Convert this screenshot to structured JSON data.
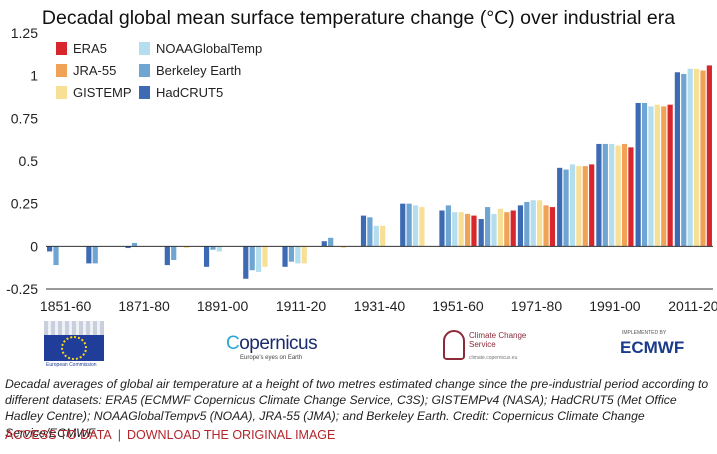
{
  "chart_data": {
    "type": "bar",
    "title": "Decadal global mean surface temperature change (°C) over industrial era",
    "xlabel": "",
    "ylabel": "",
    "ylim": [
      -0.25,
      1.25
    ],
    "yticks": [
      -0.25,
      0,
      0.25,
      0.5,
      0.75,
      1,
      1.25
    ],
    "ytick_labels": [
      "-0.25",
      "0",
      "0.25",
      "0.5",
      "0.75",
      "1",
      "1.25"
    ],
    "categories": [
      "1851-60",
      "1861-70",
      "1871-80",
      "1881-90",
      "1891-00",
      "1901-10",
      "1911-20",
      "1921-30",
      "1931-40",
      "1941-50",
      "1951-60",
      "1961-70",
      "1971-80",
      "1981-90",
      "1991-00",
      "2001-10",
      "2011-20"
    ],
    "xtick_labels": [
      "1851-60",
      "",
      "1871-80",
      "",
      "1891-00",
      "",
      "1911-20",
      "",
      "1931-40",
      "",
      "1951-60",
      "",
      "1971-80",
      "",
      "1991-00",
      "",
      "2011-20"
    ],
    "grid": false,
    "legend_position": "top-left",
    "series": [
      {
        "name": "HadCRUT5",
        "color": "#3d6bb3",
        "values": [
          -0.03,
          -0.1,
          -0.01,
          -0.11,
          -0.12,
          -0.19,
          -0.12,
          0.03,
          0.18,
          0.25,
          0.21,
          0.16,
          0.24,
          0.46,
          0.6,
          0.84,
          1.02
        ]
      },
      {
        "name": "Berkeley Earth",
        "color": "#6fa5d2",
        "values": [
          -0.11,
          -0.1,
          0.02,
          -0.08,
          -0.02,
          -0.14,
          -0.09,
          0.05,
          0.17,
          0.25,
          0.24,
          0.23,
          0.26,
          0.45,
          0.6,
          0.84,
          1.01
        ]
      },
      {
        "name": "NOAAGlobalTemp",
        "color": "#b4dded",
        "values": [
          null,
          null,
          null,
          null,
          -0.03,
          -0.15,
          -0.1,
          null,
          0.12,
          0.24,
          0.2,
          0.19,
          0.27,
          0.48,
          0.6,
          0.82,
          1.04
        ]
      },
      {
        "name": "GISTEMP",
        "color": "#f8df96",
        "values": [
          null,
          null,
          null,
          -0.01,
          null,
          -0.12,
          -0.1,
          -0.01,
          0.12,
          0.23,
          0.2,
          0.22,
          0.27,
          0.47,
          0.59,
          0.83,
          1.04
        ]
      },
      {
        "name": "JRA-55",
        "color": "#f0a256",
        "values": [
          null,
          null,
          null,
          null,
          null,
          null,
          null,
          null,
          null,
          null,
          0.19,
          0.2,
          0.24,
          0.47,
          0.6,
          0.82,
          1.03
        ]
      },
      {
        "name": "ERA5",
        "color": "#d8262d",
        "values": [
          null,
          null,
          null,
          null,
          null,
          null,
          null,
          null,
          null,
          null,
          0.18,
          0.21,
          0.23,
          0.48,
          0.58,
          0.83,
          1.06
        ]
      }
    ],
    "legend_order": [
      "ERA5",
      "JRA-55",
      "GISTEMP",
      "NOAAGlobalTemp",
      "Berkeley Earth",
      "HadCRUT5"
    ]
  },
  "logos": {
    "eu": {
      "text": "European Commission"
    },
    "copernicus": {
      "name_a": "C",
      "name_b": "opernicus",
      "tagline": "Europe's eyes on Earth"
    },
    "c3s": {
      "name": "Climate Change Service",
      "url": "climate.copernicus.eu"
    },
    "ecmwf": {
      "small": "IMPLEMENTED BY",
      "name": "ECMWF"
    }
  },
  "caption": "Decadal averages of global air temperature at a height of two metres estimated change since the pre-industrial period according to different datasets: ERA5 (ECMWF Copernicus Climate Change Service, C3S); GISTEMPv4 (NASA); HadCRUT5 (Met Office Hadley Centre); NOAAGlobalTempv5 (NOAA), JRA-55 (JMA); and Berkeley Earth. Credit: Copernicus Climate Change Service/ECMWF",
  "links": {
    "access": "ACCESS TO DATA",
    "separator": "|",
    "download": "DOWNLOAD THE ORIGINAL IMAGE"
  }
}
